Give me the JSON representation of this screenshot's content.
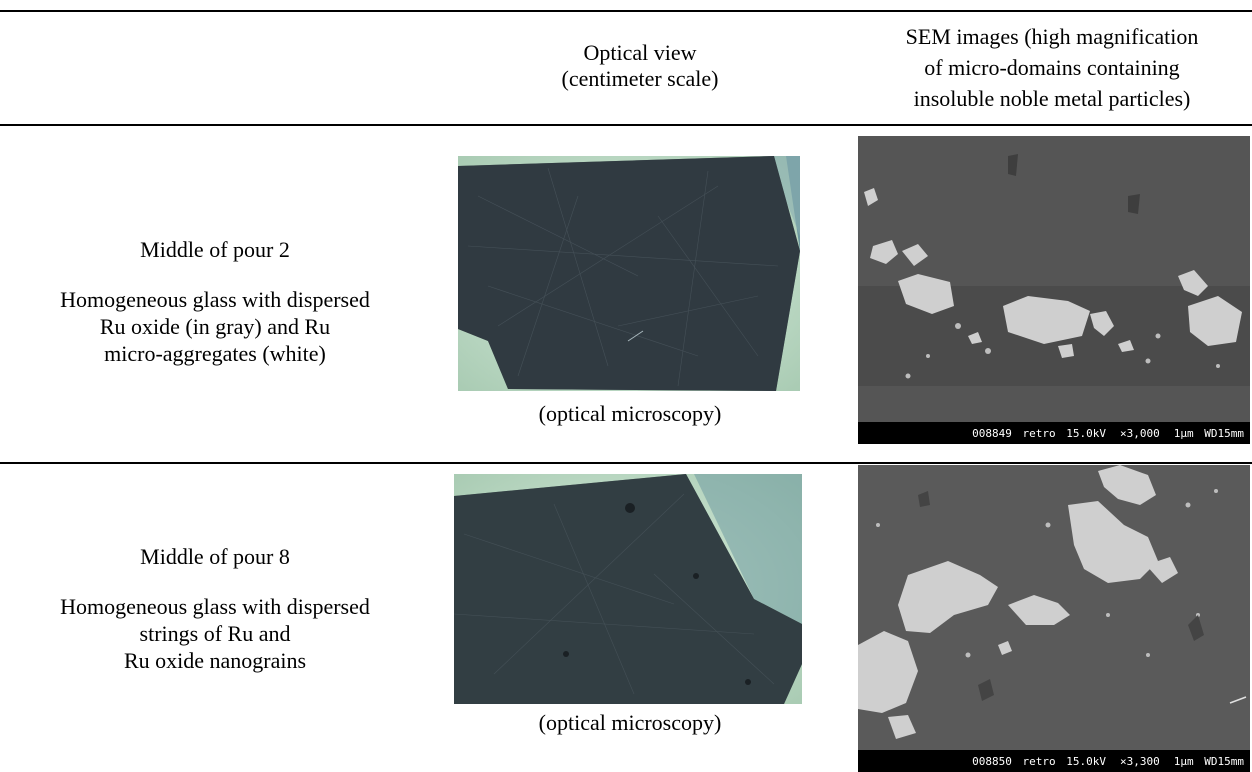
{
  "header": {
    "optical_line1": "Optical view",
    "optical_line2": "(centimeter scale)",
    "sem_line1": "SEM images (high magnification",
    "sem_line2": "of micro-domains containing",
    "sem_line3": "insoluble noble metal particles)"
  },
  "rows": [
    {
      "title": "Middle of pour 2",
      "desc_line1": "Homogeneous glass with dispersed",
      "desc_line2": "Ru oxide (in gray) and Ru",
      "desc_line3": "micro-aggregates (white)",
      "optical_caption": "(optical microscopy)",
      "sem_bar": {
        "id": "008849",
        "mode": "retro",
        "kv": "15.0kV",
        "mag": "×3,000",
        "scale": "1μm",
        "wd": "WD15mm"
      }
    },
    {
      "title": "Middle of pour 8",
      "desc_line1": "Homogeneous glass with dispersed",
      "desc_line2": "strings of Ru and",
      "desc_line3": "Ru oxide nanograins",
      "optical_caption": "(optical microscopy)",
      "sem_bar": {
        "id": "008850",
        "mode": "retro",
        "kv": "15.0kV",
        "mag": "×3,300",
        "scale": "1μm",
        "wd": "WD15mm"
      }
    }
  ]
}
